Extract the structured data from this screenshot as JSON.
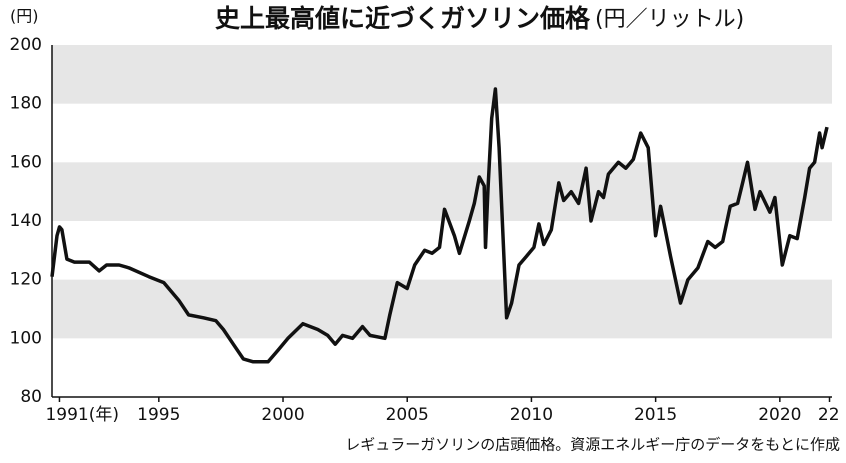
{
  "chart_data": {
    "type": "line",
    "title": "史上最高値に近づくガソリン価格",
    "unit_title": "(円／リットル)",
    "y_label": "(円)",
    "note": "レギュラーガソリンの店頭価格。資源エネルギー庁のデータをもとに作成",
    "xlim": [
      1990.7,
      2022.1
    ],
    "ylim": [
      80,
      200
    ],
    "xticks": [
      {
        "value": 1991,
        "label": "1991(年)"
      },
      1995,
      2000,
      2005,
      2010,
      2015,
      2020,
      {
        "value": 2022,
        "label": "22"
      }
    ],
    "yticks": [
      80,
      100,
      120,
      140,
      160,
      180,
      200
    ],
    "bands": true,
    "band_color": "#e6e6e6",
    "series": [
      {
        "color": "#111111",
        "x": [
          1990.7,
          1990.9,
          1991.0,
          1991.1,
          1991.3,
          1991.6,
          1992.2,
          1992.6,
          1992.9,
          1993.4,
          1993.8,
          1994.6,
          1995.2,
          1995.8,
          1996.2,
          1996.8,
          1997.3,
          1997.6,
          1998.0,
          1998.4,
          1998.8,
          1999.4,
          1999.8,
          2000.2,
          2000.8,
          2001.4,
          2001.8,
          2002.1,
          2002.4,
          2002.8,
          2003.2,
          2003.5,
          2004.1,
          2004.3,
          2004.6,
          2005.0,
          2005.3,
          2005.7,
          2006.0,
          2006.3,
          2006.5,
          2006.9,
          2007.1,
          2007.5,
          2007.7,
          2007.9,
          2008.1,
          2008.15,
          2008.25,
          2008.4,
          2008.55,
          2008.7,
          2009.0,
          2009.2,
          2009.5,
          2009.8,
          2010.1,
          2010.3,
          2010.5,
          2010.8,
          2011.1,
          2011.3,
          2011.6,
          2011.9,
          2012.2,
          2012.4,
          2012.7,
          2012.9,
          2013.1,
          2013.5,
          2013.8,
          2014.1,
          2014.4,
          2014.7,
          2015.0,
          2015.2,
          2015.6,
          2016.0,
          2016.3,
          2016.7,
          2017.1,
          2017.4,
          2017.7,
          2018.0,
          2018.3,
          2018.5,
          2018.7,
          2019.0,
          2019.2,
          2019.6,
          2019.8,
          2020.1,
          2020.4,
          2020.7,
          2021.0,
          2021.2,
          2021.4,
          2021.6,
          2021.7,
          2021.9
        ],
        "values": [
          121,
          135,
          138,
          137,
          127,
          126,
          126,
          123,
          125,
          125,
          124,
          121,
          119,
          113,
          108,
          107,
          106,
          103,
          98,
          93,
          92,
          92,
          96,
          100,
          105,
          103,
          101,
          98,
          101,
          100,
          104,
          101,
          100,
          108,
          119,
          117,
          125,
          130,
          129,
          131,
          144,
          135,
          129,
          140,
          146,
          155,
          152,
          131,
          151,
          175,
          185,
          165,
          107,
          112,
          125,
          128,
          131,
          139,
          132,
          137,
          153,
          147,
          150,
          146,
          158,
          140,
          150,
          148,
          156,
          160,
          158,
          161,
          170,
          165,
          135,
          145,
          128,
          112,
          120,
          124,
          133,
          131,
          133,
          145,
          146,
          153,
          160,
          144,
          150,
          143,
          148,
          125,
          135,
          134,
          148,
          158,
          160,
          170,
          165,
          172
        ]
      }
    ]
  }
}
